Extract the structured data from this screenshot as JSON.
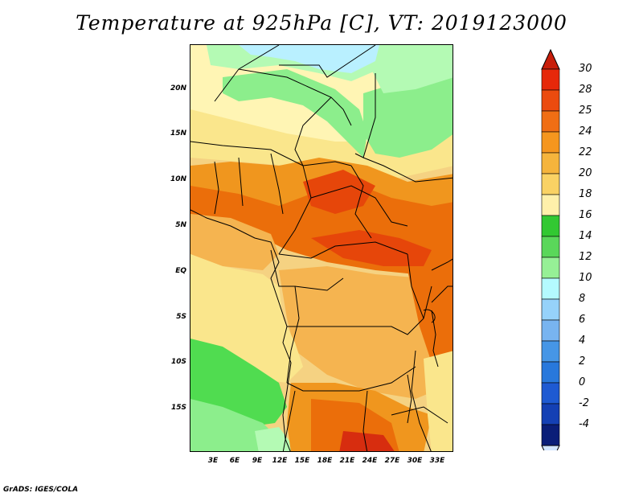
{
  "title": "Temperature at 925hPa [C], VT: 2019123000",
  "credit": "GrADS: IGES/COLA",
  "map": {
    "lat_labels": [
      "20N",
      "15N",
      "10N",
      "5N",
      "EQ",
      "5S",
      "10S",
      "15S"
    ],
    "lon_labels": [
      "3E",
      "6E",
      "9E",
      "12E",
      "15E",
      "18E",
      "21E",
      "24E",
      "27E",
      "30E",
      "33E"
    ],
    "field_colors": {
      "cold_light_blue": "#b9f0ff",
      "pale_green": "#b4fab4",
      "light_green": "#8cee8c",
      "green": "#50dc50",
      "dark_green": "#3cc83c",
      "pale_yellow": "#fff5b4",
      "light_yellow": "#fae68c",
      "yellow_orange": "#f5d282",
      "light_orange": "#f5b450",
      "orange": "#f0961e",
      "dark_orange": "#eb6e0a",
      "red_orange": "#e6460a",
      "red": "#d72d0f"
    },
    "boundary_color": "#000000"
  },
  "colorbar": {
    "labels": [
      "30",
      "28",
      "25",
      "24",
      "22",
      "20",
      "18",
      "16",
      "14",
      "12",
      "10",
      "8",
      "6",
      "4",
      "2",
      "0",
      "-2",
      "-4"
    ],
    "colors": [
      "#e6280a",
      "#eb4b0f",
      "#f06e14",
      "#f5961e",
      "#f5b43c",
      "#fad264",
      "#fff0aa",
      "#32c832",
      "#5ad75a",
      "#96f096",
      "#b4faff",
      "#96d2fa",
      "#78b4f0",
      "#4696e6",
      "#2878dc",
      "#1e5ad2",
      "#1440b4",
      "#0a1e78"
    ],
    "top_arrow_color": "#c81e0a",
    "bottom_arrow_color": "#d2e6ff"
  }
}
